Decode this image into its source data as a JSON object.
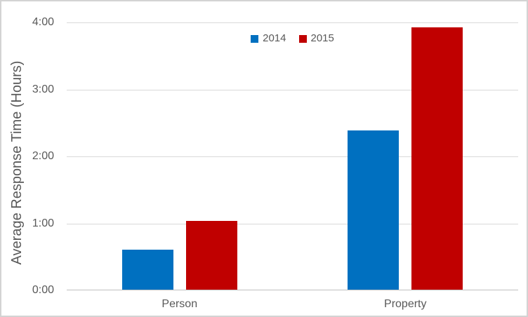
{
  "figure": {
    "background": "#ffffff",
    "border_color": "#d3d3d3"
  },
  "styles": {
    "text_color": "#595959",
    "gridline_color": "#d9d9d9",
    "axis_line_color": "#bfbfbf"
  },
  "chart_data": {
    "type": "bar",
    "title": "",
    "categories": [
      "Person",
      "Property"
    ],
    "series": [
      {
        "name": "2014",
        "color": "#0070C0",
        "values": [
          0.6,
          2.38
        ]
      },
      {
        "name": "2015",
        "color": "#C00000",
        "values": [
          1.03,
          3.92
        ]
      }
    ],
    "xlabel": "",
    "ylabel": "Average Response Time (Hours)",
    "ylim": [
      0,
      4
    ],
    "ytick_interval": 1,
    "ytick_labels": [
      "0:00",
      "1:00",
      "2:00",
      "3:00",
      "4:00"
    ],
    "grid": true,
    "legend_position": "top-center"
  }
}
